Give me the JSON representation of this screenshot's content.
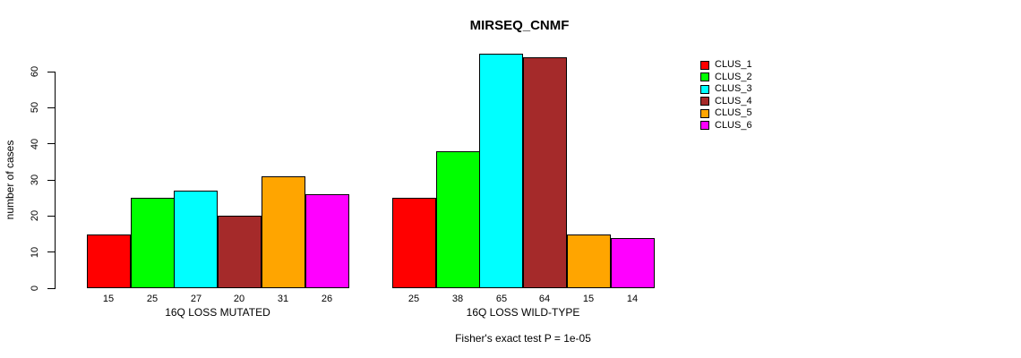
{
  "chart_data": {
    "type": "bar",
    "title": "MIRSEQ_CNMF",
    "ylabel": "number of cases",
    "ylim": [
      0,
      65
    ],
    "yticks": [
      0,
      10,
      20,
      30,
      40,
      50,
      60
    ],
    "grid": false,
    "legend_position": "top-right",
    "series_names": [
      "CLUS_1",
      "CLUS_2",
      "CLUS_3",
      "CLUS_4",
      "CLUS_5",
      "CLUS_6"
    ],
    "series_colors": [
      "#ff0000",
      "#00ff00",
      "#00ffff",
      "#a52a2a",
      "#ffa500",
      "#ff00ff"
    ],
    "groups": [
      {
        "label": "16Q LOSS MUTATED",
        "values": [
          15,
          25,
          27,
          20,
          31,
          26
        ]
      },
      {
        "label": "16Q LOSS WILD-TYPE",
        "values": [
          25,
          38,
          65,
          64,
          15,
          14
        ]
      }
    ],
    "annotation": "Fisher's exact test P = 1e-05"
  },
  "colors": {
    "background": "#ffffff",
    "axis": "#000000",
    "text": "#000000"
  }
}
